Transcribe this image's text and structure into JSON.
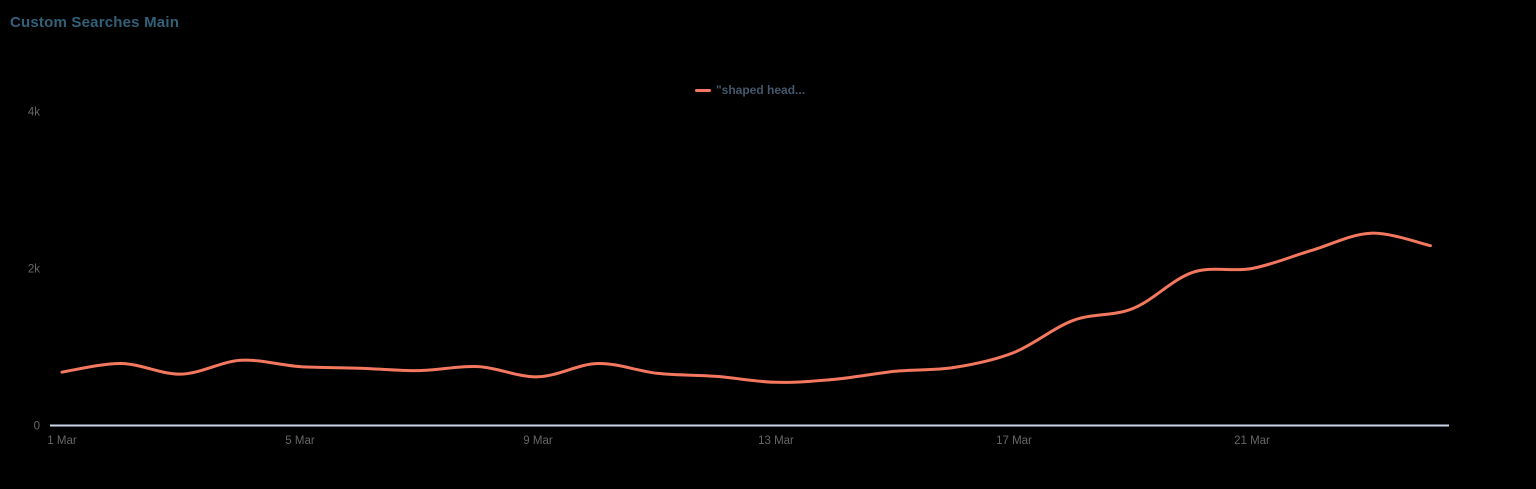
{
  "title": "Custom Searches Main",
  "legend": {
    "label": "\"shaped head...",
    "position": "top-center"
  },
  "colors": {
    "background": "#000000",
    "title": "#326179",
    "legend_text": "#44586c",
    "axis_labels": "#666666",
    "axis_line": "#ccd6eb",
    "series": "#f4785f"
  },
  "chart_data": {
    "type": "line",
    "title": "Custom Searches Main",
    "xlabel": "",
    "ylabel": "",
    "grid": false,
    "legend_position": "top-center",
    "ylim": [
      0,
      4000
    ],
    "y_tick_labels": [
      "0",
      "2k",
      "4k"
    ],
    "y_tick_values": [
      0,
      2000,
      4000
    ],
    "x_tick_labels": [
      "1 Mar",
      "5 Mar",
      "9 Mar",
      "13 Mar",
      "17 Mar",
      "21 Mar"
    ],
    "x_tick_days": [
      1,
      5,
      9,
      13,
      17,
      21
    ],
    "series": [
      {
        "name": "\"shaped head...",
        "color": "#f4785f",
        "x_days": [
          1,
          2,
          3,
          4,
          5,
          6,
          7,
          8,
          9,
          10,
          11,
          12,
          13,
          14,
          15,
          16,
          17,
          18,
          19,
          20,
          21,
          22,
          23,
          24
        ],
        "values": [
          680,
          790,
          655,
          830,
          750,
          730,
          700,
          750,
          620,
          790,
          665,
          625,
          550,
          590,
          690,
          740,
          930,
          1340,
          1490,
          1950,
          2000,
          2230,
          2450,
          2290
        ]
      }
    ]
  }
}
